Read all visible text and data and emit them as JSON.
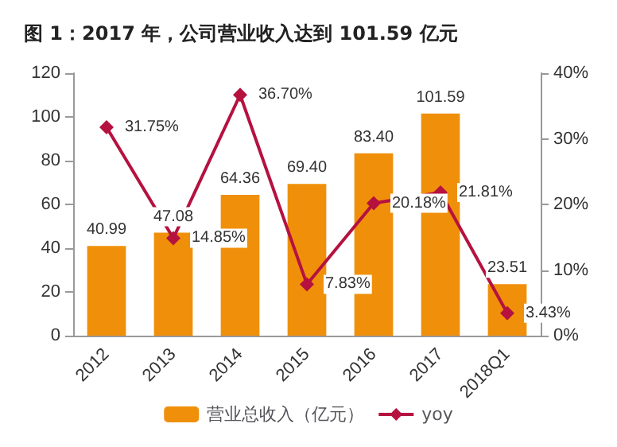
{
  "chart_data": {
    "type": "bar",
    "title": "图 1：2017 年，公司营业收入达到 101.59 亿元",
    "categories": [
      "2012",
      "2013",
      "2014",
      "2015",
      "2016",
      "2017",
      "2018Q1"
    ],
    "series": [
      {
        "name": "营业总收入（亿元）",
        "color": "#f0900a",
        "values": [
          40.99,
          47.08,
          64.36,
          69.4,
          83.4,
          101.59,
          23.51
        ],
        "value_labels": [
          "40.99",
          "47.08",
          "64.36",
          "69.40",
          "83.40",
          "101.59",
          "23.51"
        ]
      },
      {
        "name": "yoy",
        "type": "line",
        "axis": "y2",
        "color": "#b5123f",
        "marker": "diamond",
        "values": [
          31.75,
          14.85,
          36.7,
          7.83,
          20.18,
          21.81,
          3.43
        ],
        "value_labels": [
          "31.75%",
          "14.85%",
          "36.70%",
          "7.83%",
          "20.18%",
          "21.81%",
          "3.43%"
        ]
      }
    ],
    "ylim": [
      0,
      120
    ],
    "yticks": [
      0,
      20,
      40,
      60,
      80,
      100,
      120
    ],
    "y2lim": [
      0,
      40
    ],
    "y2ticks": [
      {
        "value": 0,
        "label": "0%"
      },
      {
        "value": 10,
        "label": "10%"
      },
      {
        "value": 20,
        "label": "20%"
      },
      {
        "value": 30,
        "label": "30%"
      },
      {
        "value": 40,
        "label": "40%"
      }
    ],
    "grid": false,
    "legend": "bottom"
  }
}
